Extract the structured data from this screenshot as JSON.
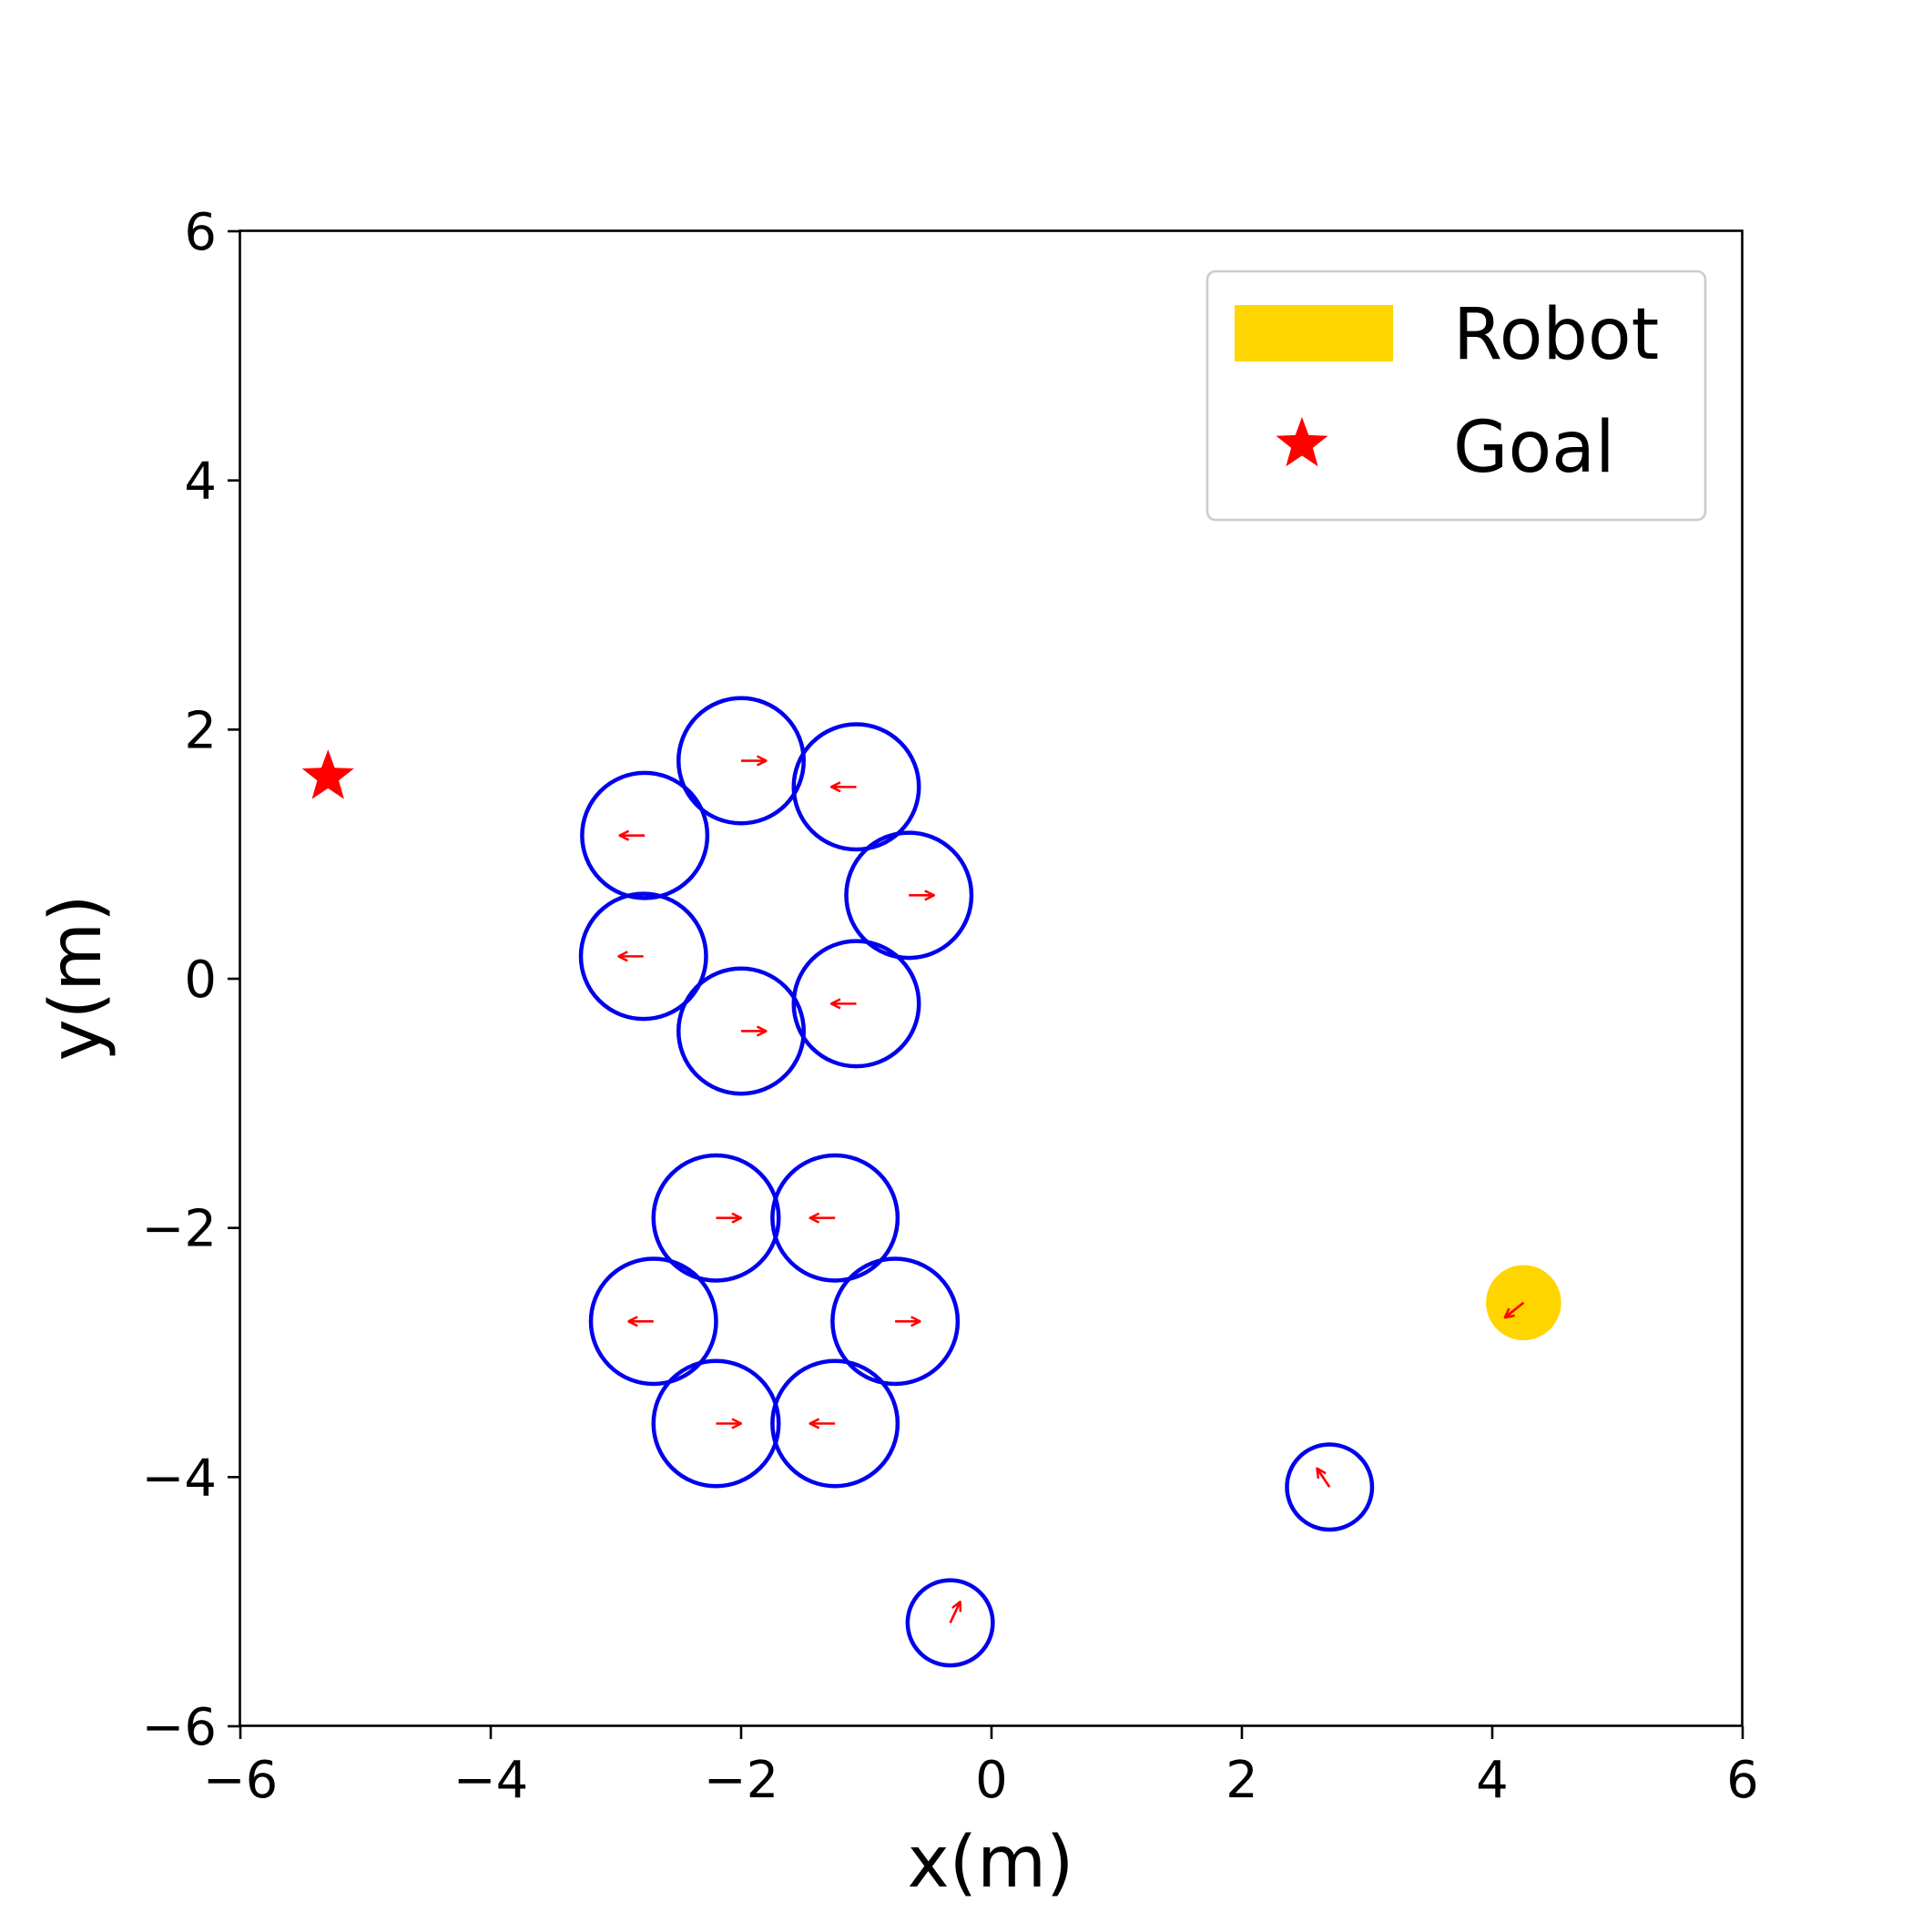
{
  "chart_data": {
    "type": "scatter",
    "title": "",
    "xlabel": "x(m)",
    "ylabel": "y(m)",
    "xlim": [
      -6,
      6
    ],
    "ylim": [
      -6,
      6
    ],
    "xticks": [
      -6,
      -4,
      -2,
      0,
      2,
      4,
      6
    ],
    "yticks": [
      -6,
      -4,
      -2,
      0,
      2,
      4,
      6
    ],
    "xtick_labels": [
      "−6",
      "−4",
      "−2",
      "0",
      "2",
      "4",
      "6"
    ],
    "ytick_labels": [
      "−6",
      "−4",
      "−2",
      "0",
      "2",
      "4",
      "6"
    ],
    "grid": false,
    "legend": {
      "location": "top-right",
      "entries": [
        {
          "label": "Robot",
          "marker": "filled-rectangle",
          "color": "#FFD500"
        },
        {
          "label": "Goal",
          "marker": "star",
          "color": "#FF0000"
        }
      ]
    },
    "colors": {
      "obstacle_outline": "#0000EE",
      "velocity_arrow": "#FF0000",
      "robot": "#FFD500",
      "goal": "#FF0000"
    },
    "robot": {
      "x": 4.25,
      "y": -2.6,
      "radius": 0.3,
      "heading": {
        "dx": -0.15,
        "dy": -0.12
      }
    },
    "goal": {
      "x": -5.3,
      "y": 1.62
    },
    "obstacles": [
      {
        "x": -2.0,
        "y": 1.75,
        "radius": 0.5,
        "heading": {
          "dx": 0.2,
          "dy": 0.0
        }
      },
      {
        "x": -1.08,
        "y": 1.54,
        "radius": 0.5,
        "heading": {
          "dx": -0.2,
          "dy": 0.0
        }
      },
      {
        "x": -2.77,
        "y": 1.15,
        "radius": 0.5,
        "heading": {
          "dx": -0.2,
          "dy": 0.0
        }
      },
      {
        "x": -0.66,
        "y": 0.67,
        "radius": 0.5,
        "heading": {
          "dx": 0.2,
          "dy": 0.0
        }
      },
      {
        "x": -2.78,
        "y": 0.18,
        "radius": 0.5,
        "heading": {
          "dx": -0.2,
          "dy": 0.0
        }
      },
      {
        "x": -1.08,
        "y": -0.2,
        "radius": 0.5,
        "heading": {
          "dx": -0.2,
          "dy": 0.0
        }
      },
      {
        "x": -2.0,
        "y": -0.42,
        "radius": 0.5,
        "heading": {
          "dx": 0.2,
          "dy": 0.0
        }
      },
      {
        "x": -2.2,
        "y": -1.92,
        "radius": 0.5,
        "heading": {
          "dx": 0.2,
          "dy": 0.0
        }
      },
      {
        "x": -1.25,
        "y": -1.92,
        "radius": 0.5,
        "heading": {
          "dx": -0.2,
          "dy": 0.0
        }
      },
      {
        "x": -2.7,
        "y": -2.75,
        "radius": 0.5,
        "heading": {
          "dx": -0.2,
          "dy": 0.0
        }
      },
      {
        "x": -0.77,
        "y": -2.75,
        "radius": 0.5,
        "heading": {
          "dx": 0.2,
          "dy": 0.0
        }
      },
      {
        "x": -2.2,
        "y": -3.57,
        "radius": 0.5,
        "heading": {
          "dx": 0.2,
          "dy": 0.0
        }
      },
      {
        "x": -1.25,
        "y": -3.57,
        "radius": 0.5,
        "heading": {
          "dx": -0.2,
          "dy": 0.0
        }
      },
      {
        "x": 2.7,
        "y": -4.08,
        "radius": 0.34,
        "heading": {
          "dx": -0.1,
          "dy": 0.15
        }
      },
      {
        "x": -0.33,
        "y": -5.17,
        "radius": 0.34,
        "heading": {
          "dx": 0.08,
          "dy": 0.17
        }
      }
    ]
  }
}
